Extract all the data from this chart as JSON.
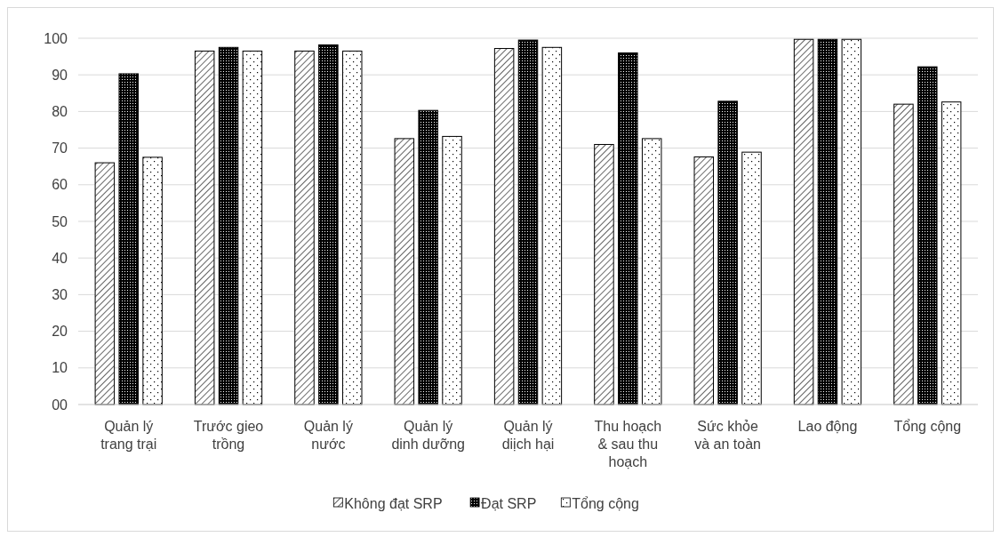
{
  "chart_data": {
    "type": "bar",
    "categories": [
      "Quản lý trang trại",
      "Trước gieo trồng",
      "Quản lý nước",
      "Quản lý dinh dưỡng",
      "Quản lý diịch hại",
      "Thu hoạch & sau thu hoạch",
      "Sức khỏe và an toàn",
      "Lao động",
      "Tổng cộng"
    ],
    "series": [
      {
        "name": "Không đạt SRP",
        "color": "#000000",
        "values": [
          66.0,
          96.5,
          96.5,
          72.6,
          97.2,
          71.0,
          67.6,
          99.7,
          82.0
        ]
      },
      {
        "name": "Đạt SRP",
        "color": "#000000",
        "values": [
          90.3,
          97.5,
          98.2,
          80.3,
          99.5,
          96.0,
          82.8,
          99.7,
          92.2
        ]
      },
      {
        "name": "Tổng cộng",
        "color": "#000000",
        "values": [
          67.5,
          96.5,
          96.5,
          73.2,
          97.5,
          72.6,
          68.9,
          99.7,
          82.6
        ]
      }
    ],
    "ylim": [
      0,
      100
    ],
    "yticks": [
      {
        "value": 0,
        "label": "00"
      },
      10,
      20,
      30,
      40,
      50,
      60,
      70,
      80,
      90,
      100
    ],
    "grid": "y",
    "legend": "bottom"
  }
}
